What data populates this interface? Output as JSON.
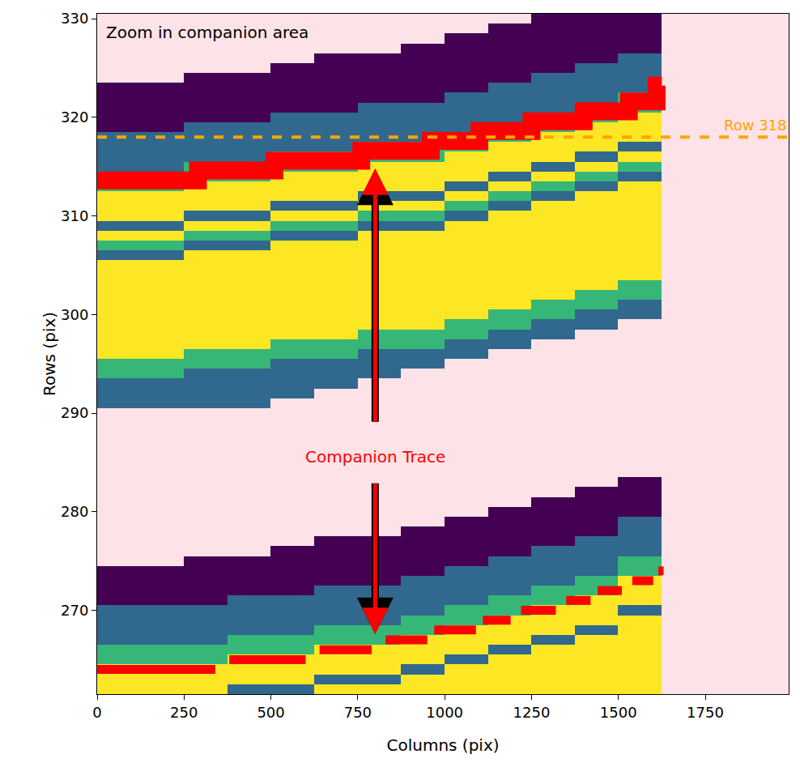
{
  "chart_data": {
    "type": "heatmap",
    "xlabel": "Columns (pix)",
    "ylabel": "Rows (pix)",
    "xlim": [
      0,
      1990
    ],
    "ylim": [
      261.5,
      330.5
    ],
    "xticks": [
      0,
      250,
      500,
      750,
      1000,
      1250,
      1500,
      1750
    ],
    "yticks": [
      270,
      280,
      290,
      300,
      310,
      320,
      330
    ],
    "grid": false,
    "zlim": [
      0,
      3
    ],
    "columns": [
      62.5,
      187.5,
      312.5,
      437.5,
      562.5,
      687.5,
      812.5,
      937.5,
      1062.5,
      1187.5,
      1312.5,
      1437.5,
      1562.5
    ],
    "rows": [
      262,
      263,
      264,
      265,
      266,
      267,
      268,
      269,
      270,
      271,
      272,
      273,
      274,
      275,
      276,
      277,
      278,
      279,
      280,
      281,
      282,
      283,
      284,
      285,
      286,
      287,
      288,
      289,
      290,
      291,
      292,
      293,
      294,
      295,
      296,
      297,
      298,
      299,
      300,
      301,
      302,
      303,
      304,
      305,
      306,
      307,
      308,
      309,
      310,
      311,
      312,
      313,
      314,
      315,
      316,
      317,
      318,
      319,
      320,
      321,
      322,
      323,
      324,
      325,
      326,
      327,
      328,
      329,
      330
    ],
    "cells": [
      [
        3,
        3,
        3,
        1,
        1,
        3,
        3,
        3,
        3,
        3,
        3,
        3,
        3
      ],
      [
        3,
        3,
        3,
        3,
        3,
        1,
        1,
        3,
        3,
        3,
        3,
        3,
        3
      ],
      [
        3,
        3,
        3,
        3,
        3,
        3,
        3,
        1,
        3,
        3,
        3,
        3,
        3
      ],
      [
        2,
        2,
        2,
        3,
        3,
        3,
        3,
        3,
        1,
        3,
        3,
        3,
        3
      ],
      [
        2,
        2,
        2,
        2,
        2,
        3,
        3,
        3,
        3,
        1,
        3,
        3,
        3
      ],
      [
        1,
        1,
        1,
        2,
        2,
        2,
        2,
        3,
        3,
        3,
        1,
        3,
        3
      ],
      [
        1,
        1,
        1,
        1,
        1,
        2,
        2,
        2,
        3,
        3,
        3,
        1,
        3
      ],
      [
        1,
        1,
        1,
        1,
        1,
        1,
        1,
        2,
        2,
        3,
        3,
        3,
        3
      ],
      [
        1,
        1,
        1,
        1,
        1,
        1,
        1,
        1,
        2,
        2,
        3,
        3,
        1
      ],
      [
        0,
        0,
        0,
        1,
        1,
        1,
        1,
        1,
        1,
        2,
        2,
        3,
        3
      ],
      [
        0,
        0,
        0,
        0,
        0,
        1,
        1,
        1,
        1,
        1,
        2,
        2,
        3
      ],
      [
        0,
        0,
        0,
        0,
        0,
        0,
        0,
        1,
        1,
        1,
        1,
        2,
        3
      ],
      [
        0,
        0,
        0,
        0,
        0,
        0,
        0,
        0,
        1,
        1,
        1,
        1,
        2
      ],
      [
        null,
        null,
        0,
        0,
        0,
        0,
        0,
        0,
        0,
        1,
        1,
        1,
        2
      ],
      [
        null,
        null,
        null,
        null,
        0,
        0,
        0,
        0,
        0,
        0,
        1,
        1,
        1
      ],
      [
        null,
        null,
        null,
        null,
        null,
        0,
        0,
        0,
        0,
        0,
        0,
        1,
        1
      ],
      [
        null,
        null,
        null,
        null,
        null,
        null,
        null,
        0,
        0,
        0,
        0,
        0,
        1
      ],
      [
        null,
        null,
        null,
        null,
        null,
        null,
        null,
        null,
        0,
        0,
        0,
        0,
        1
      ],
      [
        null,
        null,
        null,
        null,
        null,
        null,
        null,
        null,
        null,
        0,
        0,
        0,
        0
      ],
      [
        null,
        null,
        null,
        null,
        null,
        null,
        null,
        null,
        null,
        null,
        0,
        0,
        0
      ],
      [
        null,
        null,
        null,
        null,
        null,
        null,
        null,
        null,
        null,
        null,
        null,
        0,
        0
      ],
      [
        null,
        null,
        null,
        null,
        null,
        null,
        null,
        null,
        null,
        null,
        null,
        null,
        0
      ],
      [
        null,
        null,
        null,
        null,
        null,
        null,
        null,
        null,
        null,
        null,
        null,
        null,
        null
      ],
      [
        null,
        null,
        null,
        null,
        null,
        null,
        null,
        null,
        null,
        null,
        null,
        null,
        null
      ],
      [
        null,
        null,
        null,
        null,
        null,
        null,
        null,
        null,
        null,
        null,
        null,
        null,
        null
      ],
      [
        null,
        null,
        null,
        null,
        null,
        null,
        null,
        null,
        null,
        null,
        null,
        null,
        null
      ],
      [
        null,
        null,
        null,
        null,
        null,
        null,
        null,
        null,
        null,
        null,
        null,
        null,
        null
      ],
      [
        null,
        null,
        null,
        null,
        null,
        null,
        null,
        null,
        null,
        null,
        null,
        null,
        null
      ],
      [
        null,
        null,
        null,
        null,
        null,
        null,
        null,
        null,
        null,
        null,
        null,
        null,
        null
      ],
      [
        1,
        1,
        1,
        1,
        null,
        null,
        null,
        null,
        null,
        null,
        null,
        null,
        null
      ],
      [
        1,
        1,
        1,
        1,
        1,
        null,
        null,
        null,
        null,
        null,
        null,
        null,
        null
      ],
      [
        1,
        1,
        1,
        1,
        1,
        1,
        null,
        null,
        null,
        null,
        null,
        null,
        null
      ],
      [
        2,
        2,
        1,
        1,
        1,
        1,
        1,
        null,
        null,
        null,
        null,
        null,
        null
      ],
      [
        2,
        2,
        2,
        2,
        1,
        1,
        1,
        1,
        null,
        null,
        null,
        null,
        null
      ],
      [
        3,
        3,
        2,
        2,
        2,
        2,
        1,
        1,
        1,
        null,
        null,
        null,
        null
      ],
      [
        3,
        3,
        3,
        3,
        2,
        2,
        2,
        2,
        1,
        1,
        null,
        null,
        null
      ],
      [
        3,
        3,
        3,
        3,
        3,
        3,
        2,
        2,
        2,
        1,
        1,
        null,
        null
      ],
      [
        3,
        3,
        3,
        3,
        3,
        3,
        3,
        3,
        2,
        2,
        1,
        1,
        null
      ],
      [
        3,
        3,
        3,
        3,
        3,
        3,
        3,
        3,
        3,
        2,
        2,
        1,
        1
      ],
      [
        3,
        3,
        3,
        3,
        3,
        3,
        3,
        3,
        3,
        3,
        2,
        2,
        1
      ],
      [
        3,
        3,
        3,
        3,
        3,
        3,
        3,
        3,
        3,
        3,
        3,
        2,
        2
      ],
      [
        3,
        3,
        3,
        3,
        3,
        3,
        3,
        3,
        3,
        3,
        3,
        3,
        2
      ],
      [
        3,
        3,
        3,
        3,
        3,
        3,
        3,
        3,
        3,
        3,
        3,
        3,
        3
      ],
      [
        3,
        3,
        3,
        3,
        3,
        3,
        3,
        3,
        3,
        3,
        3,
        3,
        3
      ],
      [
        1,
        1,
        3,
        3,
        3,
        3,
        3,
        3,
        3,
        3,
        3,
        3,
        3
      ],
      [
        2,
        2,
        1,
        1,
        3,
        3,
        3,
        3,
        3,
        3,
        3,
        3,
        3
      ],
      [
        3,
        3,
        2,
        2,
        1,
        1,
        3,
        3,
        3,
        3,
        3,
        3,
        3
      ],
      [
        1,
        1,
        3,
        3,
        2,
        2,
        1,
        1,
        3,
        3,
        3,
        3,
        3
      ],
      [
        3,
        3,
        1,
        1,
        3,
        3,
        2,
        2,
        1,
        3,
        3,
        3,
        3
      ],
      [
        3,
        3,
        3,
        3,
        1,
        1,
        3,
        3,
        2,
        1,
        3,
        3,
        3
      ],
      [
        3,
        3,
        3,
        3,
        3,
        3,
        1,
        1,
        3,
        2,
        1,
        3,
        3
      ],
      [
        2,
        2,
        3,
        3,
        3,
        3,
        3,
        3,
        1,
        3,
        2,
        1,
        3
      ],
      [
        2,
        2,
        2,
        2,
        3,
        3,
        3,
        3,
        3,
        1,
        3,
        2,
        1
      ],
      [
        1,
        1,
        2,
        2,
        2,
        2,
        3,
        3,
        3,
        3,
        1,
        3,
        2
      ],
      [
        1,
        1,
        1,
        1,
        2,
        2,
        2,
        2,
        3,
        3,
        3,
        1,
        3
      ],
      [
        1,
        1,
        1,
        1,
        1,
        1,
        2,
        2,
        2,
        3,
        3,
        3,
        1
      ],
      [
        1,
        1,
        1,
        1,
        1,
        1,
        1,
        1,
        2,
        2,
        3,
        3,
        3
      ],
      [
        0,
        0,
        1,
        1,
        1,
        1,
        1,
        1,
        1,
        2,
        2,
        3,
        3
      ],
      [
        0,
        0,
        0,
        0,
        1,
        1,
        1,
        1,
        1,
        1,
        2,
        2,
        3
      ],
      [
        0,
        0,
        0,
        0,
        0,
        0,
        1,
        1,
        1,
        1,
        1,
        2,
        2
      ],
      [
        0,
        0,
        0,
        0,
        0,
        0,
        0,
        0,
        1,
        1,
        1,
        1,
        2
      ],
      [
        0,
        0,
        0,
        0,
        0,
        0,
        0,
        0,
        0,
        1,
        1,
        1,
        1
      ],
      [
        null,
        null,
        0,
        0,
        0,
        0,
        0,
        0,
        0,
        0,
        1,
        1,
        1
      ],
      [
        null,
        null,
        null,
        null,
        0,
        0,
        0,
        0,
        0,
        0,
        0,
        1,
        1
      ],
      [
        null,
        null,
        null,
        null,
        null,
        0,
        0,
        0,
        0,
        0,
        0,
        0,
        1
      ],
      [
        null,
        null,
        null,
        null,
        null,
        null,
        null,
        0,
        0,
        0,
        0,
        0,
        0
      ],
      [
        null,
        null,
        null,
        null,
        null,
        null,
        null,
        null,
        0,
        0,
        0,
        0,
        0
      ],
      [
        null,
        null,
        null,
        null,
        null,
        null,
        null,
        null,
        null,
        0,
        0,
        0,
        0
      ],
      [
        null,
        null,
        null,
        null,
        null,
        null,
        null,
        null,
        null,
        null,
        0,
        0,
        0
      ]
    ],
    "traces": [
      {
        "color": "red",
        "line_style": "solid",
        "x": [
          0,
          290,
          510,
          760,
          960,
          1100,
          1250,
          1400,
          1530,
          1610,
          1625
        ],
        "values": [
          313.6,
          314.6,
          315.6,
          316.6,
          317.6,
          318.6,
          319.6,
          320.6,
          321.6,
          323.2,
          323.2
        ]
      },
      {
        "color": "red",
        "line_style": "dashed",
        "x": [
          0,
          340,
          null,
          380,
          600,
          null,
          640,
          790,
          null,
          830,
          950,
          null,
          970,
          1090,
          null,
          1110,
          1190,
          null,
          1220,
          1320,
          null,
          1350,
          1420,
          null,
          1440,
          1510,
          null,
          1540,
          1600,
          null,
          1615,
          1630
        ],
        "values": [
          264,
          264,
          null,
          265,
          265,
          null,
          266,
          266,
          null,
          267,
          267,
          null,
          268,
          268,
          null,
          269,
          269,
          null,
          270,
          270,
          null,
          271,
          271,
          null,
          272,
          272,
          null,
          273,
          273,
          null,
          274,
          274
        ]
      }
    ],
    "hline": {
      "y": 318,
      "label": "Row 318",
      "color": "orange",
      "line_style": "dashed"
    },
    "arrows": [
      {
        "x": 800,
        "from": 289,
        "to": 314.8,
        "color": "red"
      },
      {
        "x": 800,
        "from": 283,
        "to": 267.6,
        "color": "red"
      }
    ],
    "annotations": [
      {
        "text": "Zoom in companion area",
        "x": 20,
        "y": 328.6,
        "color": "black"
      },
      {
        "text": "Companion Trace",
        "x": 800,
        "y": 285.6,
        "color": "red"
      }
    ]
  }
}
